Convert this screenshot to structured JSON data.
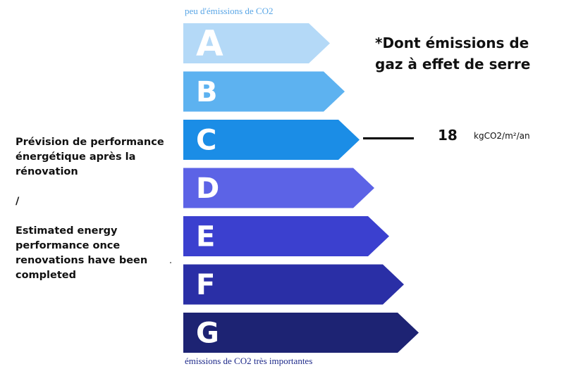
{
  "chart_data": {
    "type": "bar",
    "categories": [
      "A",
      "B",
      "C",
      "D",
      "E",
      "F",
      "G"
    ],
    "colors": [
      "#b4d9f7",
      "#5db2f0",
      "#1b8de6",
      "#5c63e6",
      "#3b40cf",
      "#2a2fa6",
      "#1d2373"
    ],
    "current_class": "C",
    "value": "18",
    "unit": "kgCO2/m²/an",
    "scale_top_label": "peu d'émissions de CO2",
    "scale_bottom_label": "émissions de CO2 très importantes",
    "legend_title": "*Dont émissions de gaz à effet de serre"
  },
  "description": {
    "fr": "Prévision de performance énergétique après la rénovation",
    "separator": "/",
    "en": "Estimated energy performance once renovations have been completed"
  }
}
